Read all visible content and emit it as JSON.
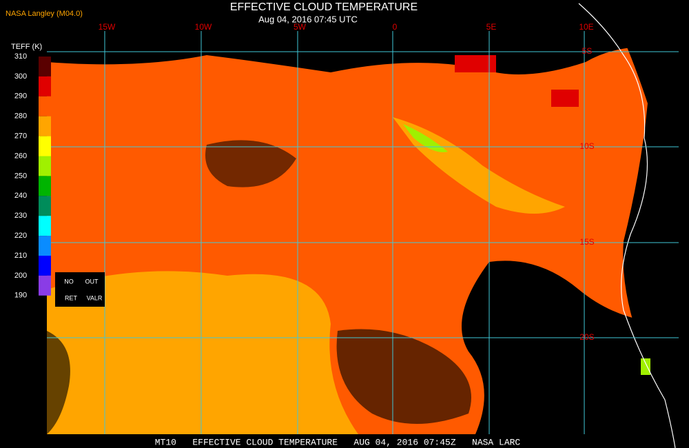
{
  "header": {
    "source": "NASA Langley (M04.0)",
    "title": "EFFECTIVE CLOUD TEMPERATURE",
    "subtitle": "Aug 04, 2016 07:45 UTC"
  },
  "colorbar": {
    "title": "TEFF (K)",
    "levels": [
      310,
      300,
      290,
      280,
      270,
      260,
      250,
      240,
      230,
      220,
      210,
      200,
      190
    ],
    "colors": [
      "#5a0000",
      "#e00000",
      "#ff5a00",
      "#ffa500",
      "#ffff00",
      "#a0f000",
      "#00b400",
      "#008c5a",
      "#00ffff",
      "#0a8cff",
      "#0000ff",
      "#8a3ce6"
    ],
    "notes": [
      "NO",
      "OUT",
      "RET",
      "VALR"
    ]
  },
  "grid": {
    "longitudes": [
      "15W",
      "10W",
      "5W",
      "0",
      "5E",
      "10E"
    ],
    "latitudes": [
      "5S",
      "10S",
      "15S",
      "20S"
    ]
  },
  "footer": "MT10   EFFECTIVE CLOUD TEMPERATURE   AUG 04, 2016 07:45Z   NASA LARC"
}
